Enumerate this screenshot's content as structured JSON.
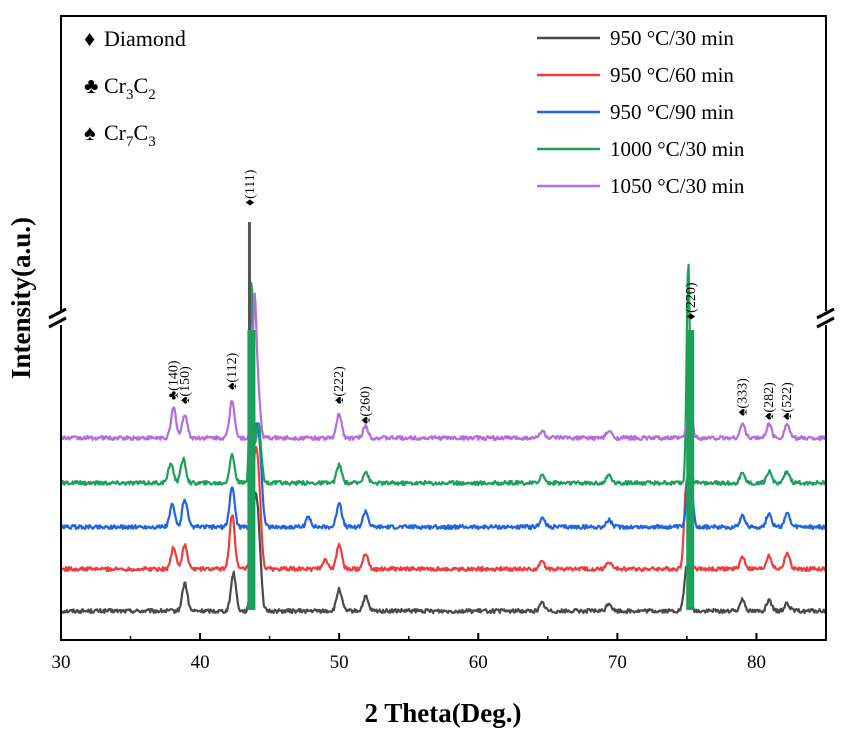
{
  "chart_data": {
    "type": "line",
    "xlabel": "2 Theta(Deg.)",
    "ylabel": "Intensity(a.u.)",
    "xlim": [
      30,
      85
    ],
    "x_ticks": [
      "30",
      "40",
      "50",
      "60",
      "70",
      "80"
    ],
    "axis_break": true,
    "series": [
      {
        "name": "950 °C/30 min",
        "color": "#4a4a4a",
        "baseline": 0,
        "peaks": [
          [
            38.9,
            28
          ],
          [
            42.4,
            38
          ],
          [
            43.9,
            95
          ],
          [
            44.2,
            70
          ],
          [
            50.0,
            22
          ],
          [
            51.9,
            14
          ],
          [
            64.6,
            8
          ],
          [
            69.4,
            8
          ],
          [
            75.0,
            45
          ],
          [
            79.0,
            12
          ],
          [
            80.9,
            10
          ],
          [
            82.2,
            8
          ]
        ]
      },
      {
        "name": "950 °C/60 min",
        "color": "#f03c3c",
        "baseline": 1,
        "peaks": [
          [
            38.1,
            22
          ],
          [
            38.9,
            24
          ],
          [
            42.3,
            55
          ],
          [
            43.9,
            90
          ],
          [
            44.2,
            80
          ],
          [
            49.0,
            10
          ],
          [
            50.0,
            25
          ],
          [
            51.9,
            16
          ],
          [
            64.6,
            7
          ],
          [
            69.4,
            7
          ],
          [
            75.0,
            90
          ],
          [
            79.0,
            12
          ],
          [
            80.9,
            14
          ],
          [
            82.2,
            16
          ]
        ]
      },
      {
        "name": "950 °C/90 min",
        "color": "#1f64e0",
        "baseline": 2,
        "peaks": [
          [
            38.0,
            22
          ],
          [
            38.9,
            28
          ],
          [
            42.3,
            40
          ],
          [
            44.0,
            85
          ],
          [
            44.3,
            60
          ],
          [
            47.8,
            10
          ],
          [
            50.0,
            25
          ],
          [
            51.9,
            16
          ],
          [
            64.6,
            9
          ],
          [
            69.4,
            7
          ],
          [
            75.2,
            70
          ],
          [
            79.0,
            12
          ],
          [
            80.9,
            14
          ],
          [
            82.2,
            14
          ]
        ]
      },
      {
        "name": "1000 °C/30 min",
        "color": "#1ca05c",
        "baseline": 3,
        "peaks": [
          [
            37.9,
            20
          ],
          [
            38.8,
            24
          ],
          [
            42.3,
            28
          ],
          [
            43.7,
            200
          ],
          [
            44.2,
            60
          ],
          [
            50.0,
            18
          ],
          [
            51.9,
            12
          ],
          [
            64.6,
            8
          ],
          [
            69.4,
            8
          ],
          [
            75.1,
            220
          ],
          [
            79.0,
            10
          ],
          [
            80.9,
            12
          ],
          [
            82.2,
            12
          ]
        ]
      },
      {
        "name": "1050 °C/30 min",
        "color": "#b46edc",
        "baseline": 4,
        "peaks": [
          [
            38.1,
            30
          ],
          [
            38.9,
            24
          ],
          [
            42.3,
            38
          ],
          [
            43.9,
            110
          ],
          [
            44.1,
            60
          ],
          [
            50.0,
            24
          ],
          [
            51.9,
            12
          ],
          [
            64.6,
            7
          ],
          [
            69.4,
            7
          ],
          [
            75.2,
            35
          ],
          [
            79.0,
            14
          ],
          [
            80.9,
            14
          ],
          [
            82.2,
            14
          ]
        ]
      }
    ],
    "phase_legend": [
      {
        "symbol": "♦",
        "label": "Diamond",
        "sub": ""
      },
      {
        "symbol": "♣",
        "label": "Cr",
        "sub1": "3",
        "mid": "C",
        "sub2": "2"
      },
      {
        "symbol": "♠",
        "label": "Cr",
        "sub1": "7",
        "mid": "C",
        "sub2": "3"
      }
    ],
    "peak_labels": [
      {
        "x": 38.1,
        "symbol": "♣",
        "text": "(140)"
      },
      {
        "x": 38.9,
        "symbol": "♠",
        "text": "(150)"
      },
      {
        "x": 42.3,
        "symbol": "♠",
        "text": "(112)"
      },
      {
        "x": 43.6,
        "symbol": "♦",
        "text": "(111)"
      },
      {
        "x": 50.0,
        "symbol": "♠",
        "text": "(222)"
      },
      {
        "x": 51.9,
        "symbol": "♠",
        "text": "(260)"
      },
      {
        "x": 75.3,
        "symbol": "♦",
        "text": "(220)"
      },
      {
        "x": 79.0,
        "symbol": "♠",
        "text": "(333)"
      },
      {
        "x": 80.9,
        "symbol": "♠",
        "text": "(282)"
      },
      {
        "x": 82.2,
        "symbol": "♠",
        "text": "(522)"
      }
    ]
  }
}
